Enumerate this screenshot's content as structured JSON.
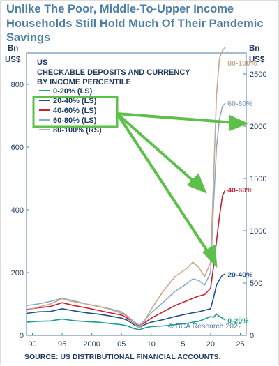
{
  "title": "Unlike The Poor, Middle-To-Upper Income Households Still Hold Much Of Their Pandemic Savings",
  "source": "SOURCE: US DISTRIBUTIONAL FINANCIAL ACCOUNTS.",
  "watermark": "© BCA Research 2022",
  "chart_data": {
    "type": "line",
    "panel_title": "US",
    "subtitle_line1": "CHECKABLE DEPOSITS AND CURRENCY",
    "subtitle_line2": "BY INCOME PERCENTILE",
    "left_axis": {
      "unit_line1": "Bn",
      "unit_line2": "US$",
      "ylim": [
        0,
        900
      ],
      "ticks": [
        0,
        200,
        400,
        600,
        800
      ]
    },
    "right_axis": {
      "unit_line1": "Bn",
      "unit_line2": "US$",
      "ylim": [
        0,
        2700
      ],
      "ticks": [
        0,
        500,
        1000,
        1500,
        2000,
        2500
      ]
    },
    "x_axis": {
      "range": [
        1989,
        2026
      ],
      "ticks": [
        1990,
        1995,
        2000,
        2005,
        2010,
        2015,
        2020,
        2025
      ],
      "tick_labels": [
        "90",
        "95",
        "2000",
        "05",
        "10",
        "15",
        "20",
        "25"
      ]
    },
    "series": [
      {
        "name": "0-20% (LS)",
        "end_label": "0-20%",
        "color": "#1a9e8c",
        "axis": "left",
        "points": [
          [
            1989,
            42
          ],
          [
            1991,
            45
          ],
          [
            1993,
            46
          ],
          [
            1995,
            52
          ],
          [
            1997,
            47
          ],
          [
            1999,
            44
          ],
          [
            2001,
            42
          ],
          [
            2003,
            38
          ],
          [
            2005,
            34
          ],
          [
            2006,
            30
          ],
          [
            2007,
            22
          ],
          [
            2008,
            18
          ],
          [
            2009,
            24
          ],
          [
            2010,
            28
          ],
          [
            2012,
            30
          ],
          [
            2014,
            34
          ],
          [
            2016,
            38
          ],
          [
            2017,
            42
          ],
          [
            2018,
            45
          ],
          [
            2019,
            52
          ],
          [
            2020,
            60
          ],
          [
            2020.5,
            58
          ],
          [
            2021,
            68
          ],
          [
            2021.5,
            60
          ],
          [
            2022,
            55
          ],
          [
            2022.5,
            48
          ]
        ]
      },
      {
        "name": "20-40% (LS)",
        "end_label": "20-40%",
        "color": "#1f4e8c",
        "axis": "left",
        "points": [
          [
            1989,
            70
          ],
          [
            1991,
            75
          ],
          [
            1993,
            76
          ],
          [
            1995,
            85
          ],
          [
            1997,
            78
          ],
          [
            1999,
            72
          ],
          [
            2001,
            68
          ],
          [
            2003,
            62
          ],
          [
            2005,
            55
          ],
          [
            2006,
            48
          ],
          [
            2007,
            35
          ],
          [
            2008,
            25
          ],
          [
            2009,
            35
          ],
          [
            2010,
            42
          ],
          [
            2012,
            50
          ],
          [
            2014,
            60
          ],
          [
            2016,
            68
          ],
          [
            2017,
            72
          ],
          [
            2018,
            75
          ],
          [
            2019,
            80
          ],
          [
            2020,
            85
          ],
          [
            2020.5,
            120
          ],
          [
            2021,
            160
          ],
          [
            2021.5,
            178
          ],
          [
            2022,
            192
          ],
          [
            2022.5,
            195
          ]
        ]
      },
      {
        "name": "40-60% (LS)",
        "end_label": "40-60%",
        "color": "#c8202e",
        "axis": "left",
        "points": [
          [
            1989,
            82
          ],
          [
            1991,
            88
          ],
          [
            1993,
            92
          ],
          [
            1995,
            104
          ],
          [
            1997,
            95
          ],
          [
            1999,
            88
          ],
          [
            2001,
            80
          ],
          [
            2003,
            72
          ],
          [
            2005,
            65
          ],
          [
            2006,
            55
          ],
          [
            2007,
            40
          ],
          [
            2008,
            28
          ],
          [
            2009,
            42
          ],
          [
            2010,
            55
          ],
          [
            2012,
            75
          ],
          [
            2014,
            95
          ],
          [
            2016,
            110
          ],
          [
            2017,
            118
          ],
          [
            2018,
            125
          ],
          [
            2019,
            130
          ],
          [
            2020,
            150
          ],
          [
            2020.5,
            220
          ],
          [
            2021,
            300
          ],
          [
            2021.5,
            380
          ],
          [
            2022,
            445
          ],
          [
            2022.5,
            465
          ]
        ]
      },
      {
        "name": "60-80% (LS)",
        "end_label": "60-80%",
        "color": "#8fa9c8",
        "axis": "left",
        "points": [
          [
            1989,
            95
          ],
          [
            1991,
            100
          ],
          [
            1993,
            108
          ],
          [
            1995,
            118
          ],
          [
            1997,
            110
          ],
          [
            1999,
            100
          ],
          [
            2001,
            92
          ],
          [
            2003,
            85
          ],
          [
            2005,
            75
          ],
          [
            2006,
            62
          ],
          [
            2007,
            45
          ],
          [
            2008,
            32
          ],
          [
            2009,
            50
          ],
          [
            2010,
            72
          ],
          [
            2012,
            105
          ],
          [
            2014,
            140
          ],
          [
            2016,
            165
          ],
          [
            2017,
            180
          ],
          [
            2018,
            175
          ],
          [
            2019,
            160
          ],
          [
            2020,
            200
          ],
          [
            2020.5,
            420
          ],
          [
            2021,
            600
          ],
          [
            2021.5,
            690
          ],
          [
            2022,
            730
          ],
          [
            2022.5,
            740
          ]
        ]
      },
      {
        "name": "80-100% (RS)",
        "end_label": "80-100%",
        "color": "#c9a98f",
        "axis": "right",
        "points": [
          [
            1989,
            240
          ],
          [
            1991,
            270
          ],
          [
            1993,
            300
          ],
          [
            1995,
            350
          ],
          [
            1997,
            320
          ],
          [
            1999,
            300
          ],
          [
            2001,
            280
          ],
          [
            2003,
            250
          ],
          [
            2005,
            210
          ],
          [
            2006,
            180
          ],
          [
            2007,
            120
          ],
          [
            2008,
            70
          ],
          [
            2009,
            150
          ],
          [
            2010,
            250
          ],
          [
            2012,
            420
          ],
          [
            2014,
            560
          ],
          [
            2016,
            640
          ],
          [
            2017,
            700
          ],
          [
            2018,
            650
          ],
          [
            2019,
            560
          ],
          [
            2020,
            700
          ],
          [
            2020.5,
            1500
          ],
          [
            2021,
            2300
          ],
          [
            2021.5,
            2650
          ],
          [
            2022,
            2720
          ],
          [
            2022.5,
            2760
          ]
        ]
      }
    ],
    "legend_placement": "top-left",
    "grid": false
  }
}
